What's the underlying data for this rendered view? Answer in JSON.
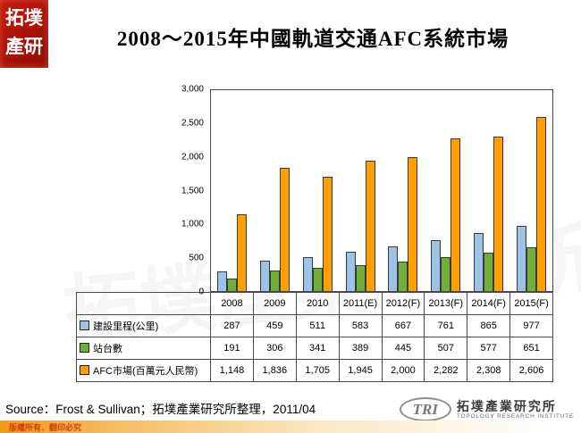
{
  "slide": {
    "title": "2008～2015年中國軌道交通AFC系統市場",
    "source": "Source：Frost & Sullivan；拓墣產業研究所整理，2011/04",
    "copyright": "版權所有．翻印必究",
    "logo_top_line1": "拓墣",
    "logo_top_line2": "產研",
    "tri": {
      "short": "TRI",
      "name_zh": "拓墣產業研究所",
      "name_en": "TOPOLOGY RESEARCH INSTITUTE"
    }
  },
  "watermark": {
    "tri": "TRI",
    "zh": "拓墣產業研究所"
  },
  "chart_data": {
    "type": "bar",
    "title": "2008～2015年中國軌道交通AFC系統市場",
    "categories": [
      "2008",
      "2009",
      "2010",
      "2011(E)",
      "2012(F)",
      "2013(F)",
      "2014(F)",
      "2015(F)"
    ],
    "series": [
      {
        "name": "建設里程(公里)",
        "color": "#9DC3E6",
        "values": [
          287,
          459,
          511,
          583,
          667,
          761,
          865,
          977
        ]
      },
      {
        "name": "站台數",
        "color": "#6FAE3B",
        "values": [
          191,
          306,
          341,
          389,
          445,
          507,
          577,
          651
        ]
      },
      {
        "name": "AFC市場(百萬元人民幣)",
        "color": "#FF9E00",
        "values": [
          1148,
          1836,
          1705,
          1945,
          2000,
          2282,
          2308,
          2606
        ]
      }
    ],
    "xlabel": "",
    "ylabel": "",
    "ylim": [
      0,
      3000
    ],
    "yticks": [
      0,
      500,
      1000,
      1500,
      2000,
      2500,
      3000
    ],
    "ytick_labels": [
      "0",
      "500",
      "1,000",
      "1,500",
      "2,000",
      "2,500",
      "3,000"
    ],
    "grid": false,
    "legend_position": "data-table-left"
  }
}
